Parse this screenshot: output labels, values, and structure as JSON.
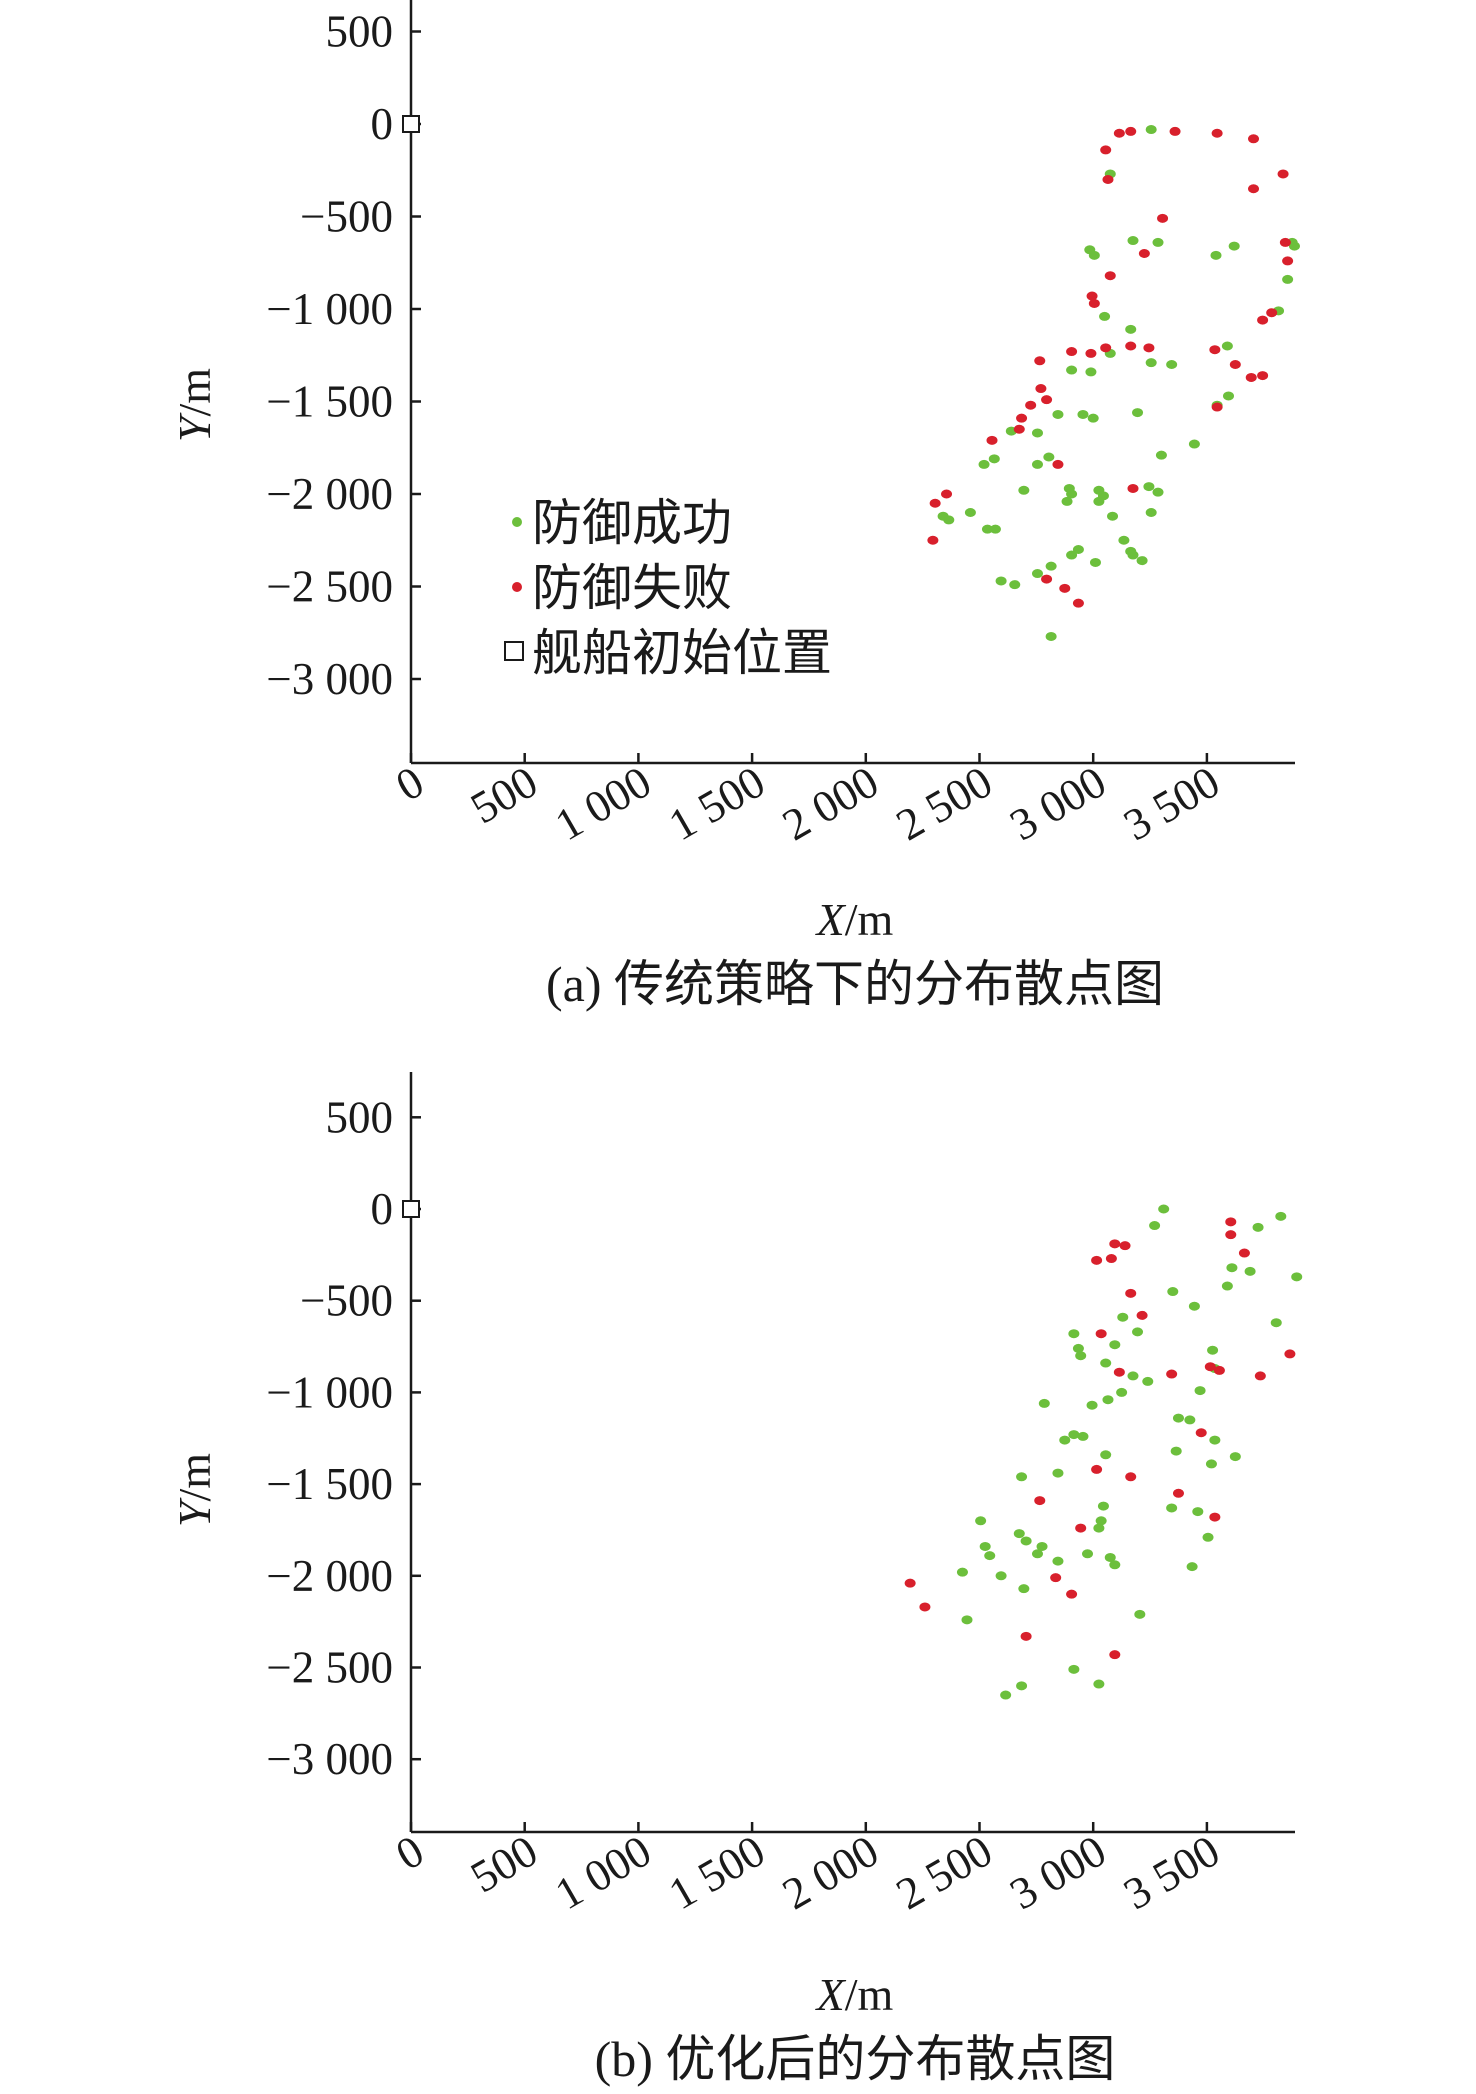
{
  "chart_data": [
    {
      "type": "scatter",
      "caption": "(a) 传统策略下的分布散点图",
      "xlabel_var": "X",
      "xlabel_unit": "/m",
      "ylabel_var": "Y",
      "ylabel_unit": "/m",
      "xlim": [
        0,
        3900
      ],
      "ylim": [
        -3400,
        700
      ],
      "x_ticks": [
        0,
        500,
        1000,
        1500,
        2000,
        2500,
        3000,
        3500
      ],
      "x_tick_labels": [
        "0",
        "500",
        "1 000",
        "1 500",
        "2 000",
        "2 500",
        "3 000",
        "3 500"
      ],
      "y_ticks": [
        500,
        0,
        -500,
        -1000,
        -1500,
        -2000,
        -2500,
        -3000
      ],
      "y_tick_labels": [
        "500",
        "0",
        "−500",
        "−1 000",
        "−1 500",
        "−2 000",
        "−2 500",
        "−3 000"
      ],
      "legend": {
        "placement": "middle-left",
        "entries": [
          {
            "label": "防御成功",
            "marker": "dot",
            "color": "#6cbf3c"
          },
          {
            "label": "防御失败",
            "marker": "dot",
            "color": "#d8202c"
          },
          {
            "label": "舰船初始位置",
            "marker": "square",
            "color": "#1a1a1a"
          }
        ]
      },
      "ship_position": [
        0,
        0
      ],
      "series": [
        {
          "name": "防御成功",
          "color": "#6cbf3c",
          "points": [
            [
              3255,
              -30
            ],
            [
              3075,
              -270
            ],
            [
              2985,
              -680
            ],
            [
              3005,
              -710
            ],
            [
              3175,
              -630
            ],
            [
              3285,
              -640
            ],
            [
              3540,
              -710
            ],
            [
              3620,
              -660
            ],
            [
              3875,
              -640
            ],
            [
              3885,
              -660
            ],
            [
              3855,
              -840
            ],
            [
              3815,
              -1010
            ],
            [
              3050,
              -1040
            ],
            [
              3165,
              -1110
            ],
            [
              3255,
              -1290
            ],
            [
              3345,
              -1300
            ],
            [
              3075,
              -1240
            ],
            [
              2905,
              -1330
            ],
            [
              2990,
              -1340
            ],
            [
              3590,
              -1200
            ],
            [
              3595,
              -1470
            ],
            [
              3545,
              -1520
            ],
            [
              3195,
              -1560
            ],
            [
              3000,
              -1590
            ],
            [
              2955,
              -1570
            ],
            [
              2845,
              -1570
            ],
            [
              2755,
              -1670
            ],
            [
              2640,
              -1660
            ],
            [
              2565,
              -1810
            ],
            [
              2520,
              -1840
            ],
            [
              2805,
              -1800
            ],
            [
              2755,
              -1840
            ],
            [
              3300,
              -1790
            ],
            [
              3445,
              -1730
            ],
            [
              2695,
              -1980
            ],
            [
              2895,
              -1970
            ],
            [
              2885,
              -2040
            ],
            [
              2905,
              -2000
            ],
            [
              3025,
              -1980
            ],
            [
              3045,
              -2010
            ],
            [
              3025,
              -2040
            ],
            [
              3245,
              -1960
            ],
            [
              3285,
              -1990
            ],
            [
              3255,
              -2100
            ],
            [
              3085,
              -2120
            ],
            [
              2340,
              -2120
            ],
            [
              2460,
              -2100
            ],
            [
              2365,
              -2140
            ],
            [
              2535,
              -2190
            ],
            [
              2570,
              -2190
            ],
            [
              3135,
              -2250
            ],
            [
              3165,
              -2310
            ],
            [
              3175,
              -2330
            ],
            [
              3215,
              -2360
            ],
            [
              2935,
              -2300
            ],
            [
              2905,
              -2330
            ],
            [
              3010,
              -2370
            ],
            [
              2815,
              -2390
            ],
            [
              2755,
              -2430
            ],
            [
              2595,
              -2470
            ],
            [
              2655,
              -2490
            ],
            [
              2815,
              -2770
            ]
          ]
        },
        {
          "name": "防御失败",
          "color": "#d8202c",
          "points": [
            [
              3115,
              -50
            ],
            [
              3165,
              -40
            ],
            [
              3360,
              -40
            ],
            [
              3545,
              -50
            ],
            [
              3705,
              -80
            ],
            [
              3055,
              -140
            ],
            [
              3065,
              -300
            ],
            [
              3835,
              -270
            ],
            [
              3705,
              -350
            ],
            [
              3305,
              -510
            ],
            [
              3845,
              -640
            ],
            [
              3855,
              -740
            ],
            [
              3225,
              -700
            ],
            [
              3075,
              -820
            ],
            [
              2995,
              -930
            ],
            [
              3005,
              -970
            ],
            [
              3785,
              -1020
            ],
            [
              3745,
              -1060
            ],
            [
              2905,
              -1230
            ],
            [
              2990,
              -1240
            ],
            [
              3055,
              -1210
            ],
            [
              3165,
              -1200
            ],
            [
              3245,
              -1210
            ],
            [
              3535,
              -1220
            ],
            [
              3625,
              -1300
            ],
            [
              3695,
              -1370
            ],
            [
              3745,
              -1360
            ],
            [
              2765,
              -1280
            ],
            [
              2770,
              -1430
            ],
            [
              2795,
              -1490
            ],
            [
              2725,
              -1520
            ],
            [
              2685,
              -1590
            ],
            [
              2675,
              -1650
            ],
            [
              2555,
              -1710
            ],
            [
              3545,
              -1530
            ],
            [
              2845,
              -1840
            ],
            [
              3175,
              -1970
            ],
            [
              2305,
              -2050
            ],
            [
              2355,
              -2000
            ],
            [
              2295,
              -2250
            ],
            [
              2795,
              -2460
            ],
            [
              2875,
              -2510
            ],
            [
              2935,
              -2590
            ]
          ]
        }
      ]
    },
    {
      "type": "scatter",
      "caption": "(b) 优化后的分布散点图",
      "xlabel_var": "X",
      "xlabel_unit": "/m",
      "ylabel_var": "Y",
      "ylabel_unit": "/m",
      "xlim": [
        0,
        3900
      ],
      "ylim": [
        -3400,
        700
      ],
      "x_ticks": [
        0,
        500,
        1000,
        1500,
        2000,
        2500,
        3000,
        3500
      ],
      "x_tick_labels": [
        "0",
        "500",
        "1 000",
        "1 500",
        "2 000",
        "2 500",
        "3 000",
        "3 500"
      ],
      "y_ticks": [
        500,
        0,
        -500,
        -1000,
        -1500,
        -2000,
        -2500,
        -3000
      ],
      "y_tick_labels": [
        "500",
        "0",
        "−500",
        "−1 000",
        "−1 500",
        "−2 000",
        "−2 500",
        "−3 000"
      ],
      "ship_position": [
        0,
        0
      ],
      "series": [
        {
          "name": "防御成功",
          "color": "#6cbf3c",
          "points": [
            [
              3310,
              0
            ],
            [
              3270,
              -90
            ],
            [
              3825,
              -40
            ],
            [
              3725,
              -100
            ],
            [
              3610,
              -320
            ],
            [
              3590,
              -420
            ],
            [
              3690,
              -340
            ],
            [
              3895,
              -370
            ],
            [
              3350,
              -450
            ],
            [
              3445,
              -530
            ],
            [
              3130,
              -590
            ],
            [
              3195,
              -670
            ],
            [
              3805,
              -620
            ],
            [
              2915,
              -680
            ],
            [
              2935,
              -760
            ],
            [
              2945,
              -800
            ],
            [
              3095,
              -740
            ],
            [
              3055,
              -840
            ],
            [
              3175,
              -910
            ],
            [
              3240,
              -940
            ],
            [
              3525,
              -770
            ],
            [
              3535,
              -870
            ],
            [
              3470,
              -990
            ],
            [
              3125,
              -1000
            ],
            [
              3065,
              -1040
            ],
            [
              2995,
              -1070
            ],
            [
              2785,
              -1060
            ],
            [
              2915,
              -1230
            ],
            [
              2955,
              -1240
            ],
            [
              2875,
              -1260
            ],
            [
              3375,
              -1140
            ],
            [
              3425,
              -1150
            ],
            [
              3535,
              -1260
            ],
            [
              3365,
              -1320
            ],
            [
              3520,
              -1390
            ],
            [
              3625,
              -1350
            ],
            [
              3055,
              -1340
            ],
            [
              2845,
              -1440
            ],
            [
              2685,
              -1460
            ],
            [
              3045,
              -1620
            ],
            [
              3035,
              -1700
            ],
            [
              3025,
              -1740
            ],
            [
              3345,
              -1630
            ],
            [
              3460,
              -1650
            ],
            [
              2505,
              -1700
            ],
            [
              2675,
              -1770
            ],
            [
              2705,
              -1810
            ],
            [
              2525,
              -1840
            ],
            [
              2545,
              -1890
            ],
            [
              2775,
              -1840
            ],
            [
              2755,
              -1880
            ],
            [
              2845,
              -1920
            ],
            [
              2975,
              -1880
            ],
            [
              3075,
              -1900
            ],
            [
              3095,
              -1940
            ],
            [
              3505,
              -1790
            ],
            [
              3435,
              -1950
            ],
            [
              2425,
              -1980
            ],
            [
              2595,
              -2000
            ],
            [
              2695,
              -2070
            ],
            [
              2445,
              -2240
            ],
            [
              3205,
              -2210
            ],
            [
              2915,
              -2510
            ],
            [
              3025,
              -2590
            ],
            [
              2685,
              -2600
            ],
            [
              2615,
              -2650
            ]
          ]
        },
        {
          "name": "防御失败",
          "color": "#d8202c",
          "points": [
            [
              3605,
              -70
            ],
            [
              3605,
              -140
            ],
            [
              3665,
              -240
            ],
            [
              3095,
              -190
            ],
            [
              3140,
              -200
            ],
            [
              3015,
              -280
            ],
            [
              3080,
              -270
            ],
            [
              3165,
              -460
            ],
            [
              3215,
              -580
            ],
            [
              3035,
              -680
            ],
            [
              3115,
              -890
            ],
            [
              3345,
              -900
            ],
            [
              3515,
              -860
            ],
            [
              3555,
              -880
            ],
            [
              3735,
              -910
            ],
            [
              3865,
              -790
            ],
            [
              3015,
              -1420
            ],
            [
              3165,
              -1460
            ],
            [
              3375,
              -1550
            ],
            [
              3475,
              -1220
            ],
            [
              2765,
              -1590
            ],
            [
              2945,
              -1740
            ],
            [
              3535,
              -1680
            ],
            [
              2835,
              -2010
            ],
            [
              2905,
              -2100
            ],
            [
              2195,
              -2040
            ],
            [
              2260,
              -2170
            ],
            [
              2705,
              -2330
            ],
            [
              3095,
              -2430
            ]
          ]
        }
      ]
    }
  ]
}
